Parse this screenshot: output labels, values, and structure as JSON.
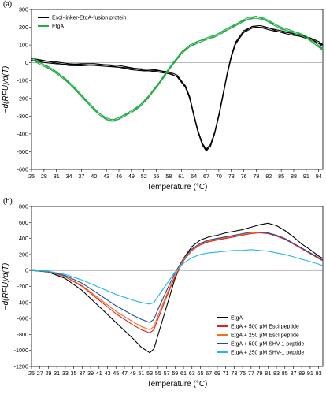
{
  "chart_data": [
    {
      "panel": "(a)",
      "type": "line",
      "xlabel": "Temperature (°C)",
      "ylabel": "−d(RFU)/d(T)",
      "xlim": [
        25,
        95
      ],
      "ylim": [
        -600,
        300
      ],
      "x_ticks": [
        25,
        28,
        31,
        34,
        37,
        40,
        43,
        46,
        49,
        52,
        55,
        58,
        61,
        64,
        67,
        70,
        73,
        76,
        79,
        82,
        85,
        88,
        91,
        94
      ],
      "y_ticks": [
        300,
        200,
        100,
        0,
        -100,
        -200,
        -300,
        -400,
        -500,
        -600
      ],
      "legend_position": "top-left",
      "series": [
        {
          "name": "EscI-linker-EtgA-fusion protein",
          "color": "#000000",
          "replicates": 3,
          "x": [
            25,
            28,
            31,
            34,
            37,
            40,
            43,
            46,
            49,
            52,
            55,
            58,
            60,
            62,
            63,
            64,
            65,
            66,
            67,
            68,
            69,
            70,
            71,
            72,
            73,
            74,
            76,
            78,
            80,
            82,
            84,
            86,
            88,
            90,
            92,
            94,
            95
          ],
          "y": [
            15,
            10,
            5,
            -5,
            -10,
            -15,
            -20,
            -25,
            -30,
            -35,
            -40,
            -55,
            -80,
            -140,
            -200,
            -290,
            -380,
            -450,
            -490,
            -470,
            -400,
            -300,
            -180,
            -60,
            40,
            110,
            170,
            195,
            200,
            195,
            185,
            175,
            160,
            145,
            130,
            110,
            100
          ]
        },
        {
          "name": "EtgA",
          "color": "#22aa44",
          "replicates": 3,
          "x": [
            25,
            27,
            29,
            31,
            33,
            35,
            37,
            39,
            41,
            43,
            44,
            45,
            46,
            47,
            49,
            51,
            53,
            55,
            57,
            59,
            61,
            63,
            65,
            67,
            69,
            71,
            73,
            75,
            77,
            79,
            81,
            83,
            85,
            87,
            89,
            91,
            93,
            95
          ],
          "y": [
            20,
            0,
            -20,
            -50,
            -90,
            -140,
            -190,
            -240,
            -280,
            -310,
            -318,
            -322,
            -318,
            -305,
            -280,
            -240,
            -190,
            -130,
            -70,
            -10,
            50,
            90,
            120,
            140,
            155,
            175,
            195,
            220,
            245,
            260,
            250,
            225,
            195,
            175,
            160,
            140,
            115,
            80
          ]
        }
      ]
    },
    {
      "panel": "(b)",
      "type": "line",
      "xlabel": "Temperature (°C)",
      "ylabel": "−d(RFU)/d(T)",
      "xlim": [
        25,
        94
      ],
      "ylim": [
        -1200,
        800
      ],
      "x_ticks": [
        25,
        27,
        29,
        31,
        33,
        35,
        37,
        39,
        41,
        43,
        45,
        47,
        49,
        51,
        53,
        55,
        57,
        59,
        61,
        63,
        65,
        67,
        69,
        71,
        73,
        75,
        77,
        79,
        81,
        83,
        85,
        87,
        89,
        91,
        93
      ],
      "y_ticks": [
        800,
        600,
        400,
        200,
        0,
        -200,
        -400,
        -600,
        -800,
        -1000,
        -1200
      ],
      "legend_position": "bottom-right",
      "series": [
        {
          "name": "EtgA",
          "color": "#000000",
          "x": [
            25,
            29,
            33,
            37,
            41,
            45,
            49,
            51,
            53,
            54,
            55,
            57,
            59,
            61,
            63,
            65,
            67,
            69,
            71,
            73,
            75,
            77,
            79,
            81,
            83,
            85,
            87,
            89,
            91,
            93,
            94
          ],
          "y": [
            0,
            -20,
            -100,
            -250,
            -450,
            -650,
            -850,
            -960,
            -1030,
            -980,
            -800,
            -450,
            -100,
            150,
            300,
            380,
            420,
            440,
            470,
            490,
            510,
            540,
            570,
            590,
            560,
            500,
            420,
            330,
            260,
            180,
            150
          ]
        },
        {
          "name": "EtgA + 500 μM EscI peptide",
          "color": "#e02020",
          "x": [
            25,
            29,
            33,
            37,
            41,
            45,
            49,
            51,
            53,
            54,
            55,
            57,
            59,
            61,
            63,
            65,
            67,
            69,
            71,
            73,
            75,
            77,
            79,
            81,
            83,
            85,
            87,
            89,
            91,
            93,
            94
          ],
          "y": [
            0,
            -15,
            -80,
            -200,
            -370,
            -540,
            -680,
            -740,
            -780,
            -740,
            -600,
            -330,
            -80,
            120,
            250,
            320,
            360,
            380,
            400,
            420,
            440,
            460,
            470,
            460,
            430,
            390,
            330,
            270,
            210,
            150,
            120
          ]
        },
        {
          "name": "EtgA + 250 μM EscI peptide",
          "color": "#f07020",
          "x": [
            25,
            29,
            33,
            37,
            41,
            45,
            49,
            51,
            53,
            54,
            55,
            57,
            59,
            61,
            63,
            65,
            67,
            69,
            71,
            73,
            75,
            77,
            79,
            81,
            83,
            85,
            87,
            89,
            91,
            93,
            94
          ],
          "y": [
            0,
            -15,
            -75,
            -190,
            -350,
            -510,
            -640,
            -700,
            -740,
            -700,
            -560,
            -300,
            -60,
            130,
            260,
            330,
            370,
            390,
            410,
            430,
            450,
            470,
            480,
            470,
            440,
            400,
            340,
            280,
            220,
            160,
            130
          ]
        },
        {
          "name": "EtgA + 500 μM SHV-1 peptide",
          "color": "#1a4fa0",
          "x": [
            25,
            29,
            33,
            37,
            41,
            45,
            49,
            51,
            53,
            54,
            55,
            57,
            59,
            61,
            63,
            65,
            67,
            69,
            71,
            73,
            75,
            77,
            79,
            81,
            83,
            85,
            87,
            89,
            91,
            93,
            94
          ],
          "y": [
            0,
            -12,
            -65,
            -160,
            -300,
            -440,
            -560,
            -610,
            -650,
            -610,
            -480,
            -250,
            -30,
            150,
            270,
            340,
            380,
            400,
            420,
            440,
            460,
            480,
            480,
            470,
            440,
            400,
            340,
            280,
            220,
            160,
            130
          ]
        },
        {
          "name": "EtgA + 250 μM SHV-1 peptide",
          "color": "#20b8e8",
          "x": [
            25,
            29,
            33,
            37,
            41,
            45,
            49,
            51,
            53,
            54,
            55,
            57,
            59,
            61,
            63,
            65,
            67,
            69,
            71,
            73,
            75,
            77,
            79,
            81,
            83,
            85,
            87,
            89,
            91,
            93,
            94
          ],
          "y": [
            0,
            -10,
            -50,
            -120,
            -210,
            -300,
            -370,
            -400,
            -420,
            -400,
            -320,
            -170,
            -20,
            90,
            160,
            200,
            220,
            230,
            240,
            250,
            250,
            260,
            250,
            240,
            220,
            200,
            170,
            140,
            110,
            80,
            60
          ]
        }
      ]
    }
  ]
}
